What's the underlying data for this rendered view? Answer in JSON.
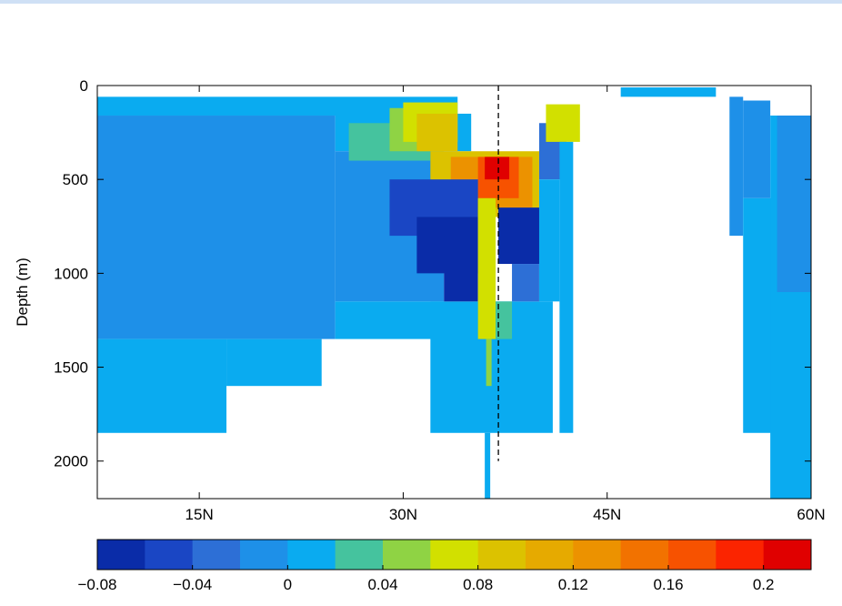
{
  "chart_data": {
    "type": "heatmap",
    "title": "",
    "xlabel": "",
    "ylabel": "Depth (m)",
    "xlim": [
      7.5,
      60
    ],
    "ylim": [
      2200,
      0
    ],
    "y_inverted": true,
    "x_ticks": [
      {
        "value": 15,
        "label": "15N"
      },
      {
        "value": 30,
        "label": "30N"
      },
      {
        "value": 45,
        "label": "45N"
      },
      {
        "value": 60,
        "label": "60N"
      }
    ],
    "y_ticks": [
      {
        "value": 0,
        "label": "0"
      },
      {
        "value": 500,
        "label": "500"
      },
      {
        "value": 1000,
        "label": "1000"
      },
      {
        "value": 1500,
        "label": "1500"
      },
      {
        "value": 2000,
        "label": "2000"
      }
    ],
    "reference_line": {
      "x": 37,
      "depth_from": 0,
      "depth_to": 2000,
      "style": "dashed"
    },
    "colorbar": {
      "min": -0.08,
      "max": 0.22,
      "step": 0.02,
      "colors": [
        "#0a2ca8",
        "#1a46c4",
        "#2d6fd6",
        "#1e90e8",
        "#0aabf0",
        "#45c39e",
        "#8fd344",
        "#d2e000",
        "#dcc200",
        "#e6aa00",
        "#ec9200",
        "#f27200",
        "#f75200",
        "#fb2400",
        "#e00000"
      ],
      "tick_values": [
        -0.08,
        -0.04,
        0,
        0.04,
        0.08,
        0.12,
        0.16,
        0.2
      ],
      "tick_labels": [
        "−0.08",
        "−0.04",
        "0",
        "0.04",
        "0.08",
        "0.12",
        "0.16",
        "0.2"
      ]
    },
    "regions": [
      {
        "x0": 7.5,
        "x1": 34,
        "y0": 60,
        "y1": 160,
        "value": 0.01
      },
      {
        "x0": 7.5,
        "x1": 25,
        "y0": 160,
        "y1": 1350,
        "value": -0.01
      },
      {
        "x0": 7.5,
        "x1": 17,
        "y0": 1350,
        "y1": 1850,
        "value": 0.01
      },
      {
        "x0": 17,
        "x1": 24,
        "y0": 1350,
        "y1": 1600,
        "value": 0.01
      },
      {
        "x0": 25,
        "x1": 35,
        "y0": 150,
        "y1": 350,
        "value": 0.01
      },
      {
        "x0": 25,
        "x1": 33,
        "y0": 350,
        "y1": 1150,
        "value": -0.01
      },
      {
        "x0": 25,
        "x1": 33,
        "y0": 1150,
        "y1": 1350,
        "value": 0.01
      },
      {
        "x0": 32,
        "x1": 41,
        "y0": 1150,
        "y1": 1850,
        "value": 0.01
      },
      {
        "x0": 36,
        "x1": 36.4,
        "y0": 1850,
        "y1": 2200,
        "value": 0.01
      },
      {
        "x0": 26,
        "x1": 32,
        "y0": 200,
        "y1": 400,
        "value": 0.03
      },
      {
        "x0": 29,
        "x1": 33,
        "y0": 120,
        "y1": 350,
        "value": 0.05
      },
      {
        "x0": 30,
        "x1": 34,
        "y0": 90,
        "y1": 300,
        "value": 0.07
      },
      {
        "x0": 31,
        "x1": 34,
        "y0": 150,
        "y1": 350,
        "value": 0.09
      },
      {
        "x0": 32,
        "x1": 40,
        "y0": 350,
        "y1": 700,
        "value": 0.09
      },
      {
        "x0": 33.5,
        "x1": 39.5,
        "y0": 380,
        "y1": 650,
        "value": 0.13
      },
      {
        "x0": 35.5,
        "x1": 38.5,
        "y0": 380,
        "y1": 600,
        "value": 0.17
      },
      {
        "x0": 36,
        "x1": 37.8,
        "y0": 380,
        "y1": 500,
        "value": 0.21
      },
      {
        "x0": 29,
        "x1": 35.5,
        "y0": 500,
        "y1": 800,
        "value": -0.05
      },
      {
        "x0": 31,
        "x1": 35.5,
        "y0": 700,
        "y1": 1000,
        "value": -0.07
      },
      {
        "x0": 33,
        "x1": 35.5,
        "y0": 800,
        "y1": 1150,
        "value": -0.07
      },
      {
        "x0": 37,
        "x1": 41,
        "y0": 650,
        "y1": 950,
        "value": -0.07
      },
      {
        "x0": 38,
        "x1": 40,
        "y0": 950,
        "y1": 1150,
        "value": -0.03
      },
      {
        "x0": 35.5,
        "x1": 36.8,
        "y0": 600,
        "y1": 1350,
        "value": 0.07
      },
      {
        "x0": 36.8,
        "x1": 38,
        "y0": 1150,
        "y1": 1350,
        "value": 0.03
      },
      {
        "x0": 36.1,
        "x1": 36.5,
        "y0": 1350,
        "y1": 1600,
        "value": 0.05
      },
      {
        "x0": 40,
        "x1": 42,
        "y0": 200,
        "y1": 500,
        "value": -0.03
      },
      {
        "x0": 40,
        "x1": 41.5,
        "y0": 500,
        "y1": 1150,
        "value": 0.01
      },
      {
        "x0": 40.5,
        "x1": 43,
        "y0": 100,
        "y1": 300,
        "value": 0.07
      },
      {
        "x0": 41.5,
        "x1": 42.5,
        "y0": 300,
        "y1": 1850,
        "value": 0.01
      },
      {
        "x0": 46,
        "x1": 53,
        "y0": 10,
        "y1": 60,
        "value": 0.01
      },
      {
        "x0": 54,
        "x1": 55,
        "y0": 60,
        "y1": 800,
        "value": -0.01
      },
      {
        "x0": 55,
        "x1": 57,
        "y0": 80,
        "y1": 600,
        "value": -0.01
      },
      {
        "x0": 55,
        "x1": 57.5,
        "y0": 600,
        "y1": 1850,
        "value": 0.01
      },
      {
        "x0": 57,
        "x1": 60,
        "y0": 160,
        "y1": 2200,
        "value": 0.01
      },
      {
        "x0": 57.5,
        "x1": 60,
        "y0": 160,
        "y1": 1100,
        "value": -0.01
      }
    ]
  }
}
